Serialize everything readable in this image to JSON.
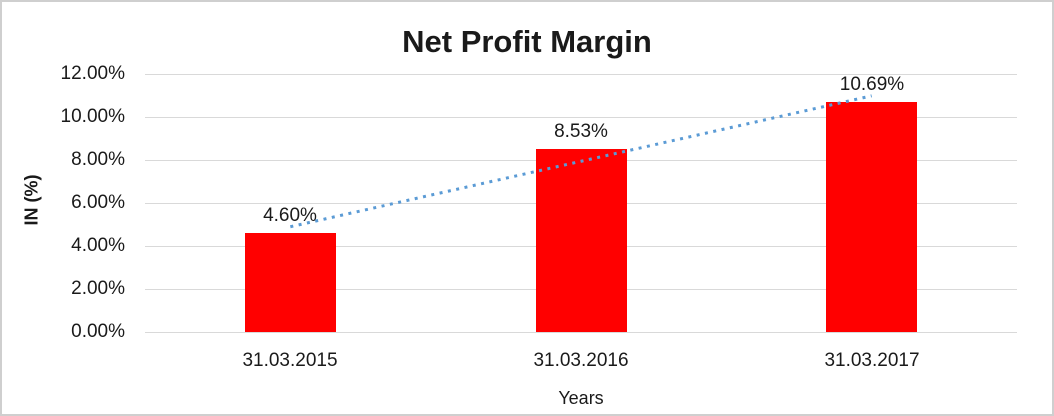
{
  "chart_data": {
    "type": "bar",
    "title": "Net Profit Margin",
    "xlabel": "Years",
    "ylabel": "IN (%)",
    "categories": [
      "31.03.2015",
      "31.03.2016",
      "31.03.2017"
    ],
    "values": [
      4.6,
      8.53,
      10.69
    ],
    "value_labels": [
      "4.60%",
      "8.53%",
      "10.69%"
    ],
    "ylim": [
      0,
      12
    ],
    "ytick_step": 2,
    "ytick_labels_top_to_bottom": [
      "12.00%",
      "10.00%",
      "8.00%",
      "6.00%",
      "4.00%",
      "2.00%",
      "0.00%"
    ],
    "grid": "horizontal",
    "legend": "none",
    "trendline": {
      "type": "linear",
      "style": "dotted"
    },
    "colors": {
      "bar": "#FF0000",
      "trendline": "#5B9BD5",
      "gridline": "#D9D9D9",
      "border": "#CFCFCF",
      "background": "#FFFFFF"
    }
  }
}
